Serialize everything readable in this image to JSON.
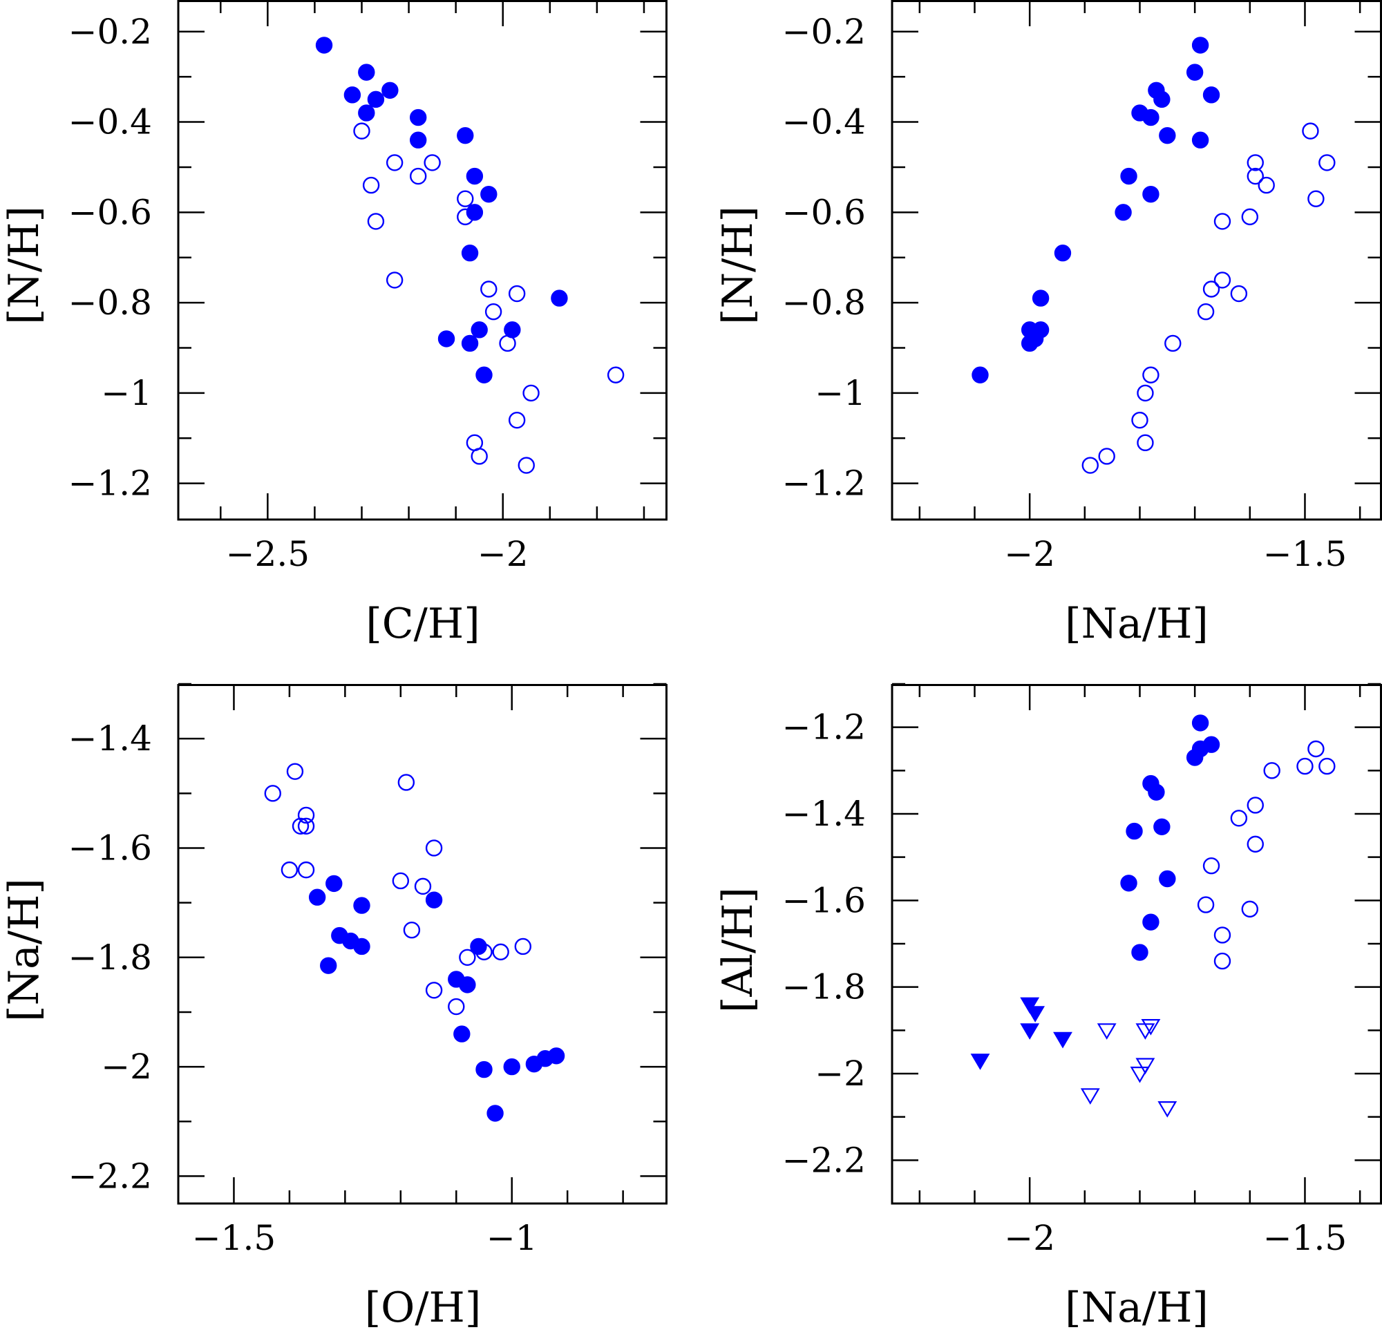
{
  "chart_data": [
    {
      "type": "scatter",
      "xlabel": "[C/H]",
      "ylabel": "[N/H]",
      "xlim": [
        -2.69,
        -1.65
      ],
      "ylim": [
        -1.28,
        -0.13
      ],
      "xticks_major": [
        -2.5,
        -2
      ],
      "xtick_labels": [
        "−2.5",
        "−2"
      ],
      "xticks_minor_step": 0.1,
      "yticks_major": [
        -1.2,
        -1,
        -0.8,
        -0.6,
        -0.4,
        -0.2
      ],
      "ytick_labels": [
        "−1.2",
        "−1",
        "−0.8",
        "−0.6",
        "−0.4",
        "−0.2"
      ],
      "yticks_minor_step": 0.1,
      "series": [
        {
          "name": "filled",
          "marker": "circle",
          "filled": true,
          "points": [
            [
              -2.38,
              -0.23
            ],
            [
              -2.29,
              -0.29
            ],
            [
              -2.32,
              -0.34
            ],
            [
              -2.27,
              -0.35
            ],
            [
              -2.24,
              -0.33
            ],
            [
              -2.29,
              -0.38
            ],
            [
              -2.18,
              -0.39
            ],
            [
              -2.18,
              -0.44
            ],
            [
              -2.08,
              -0.43
            ],
            [
              -2.06,
              -0.52
            ],
            [
              -2.03,
              -0.56
            ],
            [
              -2.06,
              -0.6
            ],
            [
              -2.07,
              -0.69
            ],
            [
              -1.88,
              -0.79
            ],
            [
              -2.05,
              -0.86
            ],
            [
              -1.98,
              -0.86
            ],
            [
              -2.12,
              -0.88
            ],
            [
              -2.07,
              -0.89
            ],
            [
              -2.04,
              -0.96
            ]
          ]
        },
        {
          "name": "open",
          "marker": "circle",
          "filled": false,
          "points": [
            [
              -2.3,
              -0.42
            ],
            [
              -2.23,
              -0.49
            ],
            [
              -2.15,
              -0.49
            ],
            [
              -2.18,
              -0.52
            ],
            [
              -2.28,
              -0.54
            ],
            [
              -2.08,
              -0.57
            ],
            [
              -2.08,
              -0.61
            ],
            [
              -2.27,
              -0.62
            ],
            [
              -2.23,
              -0.75
            ],
            [
              -2.03,
              -0.77
            ],
            [
              -1.97,
              -0.78
            ],
            [
              -2.02,
              -0.82
            ],
            [
              -1.99,
              -0.89
            ],
            [
              -1.76,
              -0.96
            ],
            [
              -1.94,
              -1.0
            ],
            [
              -1.97,
              -1.06
            ],
            [
              -2.06,
              -1.11
            ],
            [
              -2.05,
              -1.14
            ],
            [
              -1.95,
              -1.16
            ]
          ]
        }
      ]
    },
    {
      "type": "scatter",
      "xlabel": "[Na/H]",
      "ylabel": "[N/H]",
      "xlim": [
        -2.25,
        -1.36
      ],
      "ylim": [
        -1.28,
        -0.13
      ],
      "xticks_major": [
        -2,
        -1.5
      ],
      "xtick_labels": [
        "−2",
        "−1.5"
      ],
      "xticks_minor_step": 0.1,
      "yticks_major": [
        -1.2,
        -1,
        -0.8,
        -0.6,
        -0.4,
        -0.2
      ],
      "ytick_labels": [
        "−1.2",
        "−1",
        "−0.8",
        "−0.6",
        "−0.4",
        "−0.2"
      ],
      "yticks_minor_step": 0.1,
      "series": [
        {
          "name": "filled",
          "marker": "circle",
          "filled": true,
          "points": [
            [
              -1.69,
              -0.23
            ],
            [
              -1.7,
              -0.29
            ],
            [
              -1.67,
              -0.34
            ],
            [
              -1.77,
              -0.33
            ],
            [
              -1.76,
              -0.35
            ],
            [
              -1.8,
              -0.38
            ],
            [
              -1.78,
              -0.39
            ],
            [
              -1.75,
              -0.43
            ],
            [
              -1.69,
              -0.44
            ],
            [
              -1.82,
              -0.52
            ],
            [
              -1.78,
              -0.56
            ],
            [
              -1.83,
              -0.6
            ],
            [
              -1.94,
              -0.69
            ],
            [
              -1.98,
              -0.79
            ],
            [
              -2.0,
              -0.86
            ],
            [
              -1.98,
              -0.86
            ],
            [
              -1.99,
              -0.88
            ],
            [
              -2.0,
              -0.89
            ],
            [
              -2.09,
              -0.96
            ]
          ]
        },
        {
          "name": "open",
          "marker": "circle",
          "filled": false,
          "points": [
            [
              -1.49,
              -0.42
            ],
            [
              -1.46,
              -0.49
            ],
            [
              -1.59,
              -0.49
            ],
            [
              -1.59,
              -0.52
            ],
            [
              -1.57,
              -0.54
            ],
            [
              -1.48,
              -0.57
            ],
            [
              -1.6,
              -0.61
            ],
            [
              -1.65,
              -0.62
            ],
            [
              -1.65,
              -0.75
            ],
            [
              -1.67,
              -0.77
            ],
            [
              -1.62,
              -0.78
            ],
            [
              -1.68,
              -0.82
            ],
            [
              -1.74,
              -0.89
            ],
            [
              -1.78,
              -0.96
            ],
            [
              -1.79,
              -1.0
            ],
            [
              -1.8,
              -1.06
            ],
            [
              -1.79,
              -1.11
            ],
            [
              -1.86,
              -1.14
            ],
            [
              -1.89,
              -1.16
            ]
          ]
        }
      ]
    },
    {
      "type": "scatter",
      "xlabel": "[O/H]",
      "ylabel": "[Na/H]",
      "xlim": [
        -1.6,
        -0.72
      ],
      "ylim": [
        -2.25,
        -1.3
      ],
      "xticks_major": [
        -1.5,
        -1
      ],
      "xtick_labels": [
        "−1.5",
        "−1"
      ],
      "xticks_minor_step": 0.1,
      "yticks_major": [
        -2.2,
        -2,
        -1.8,
        -1.6,
        -1.4
      ],
      "ytick_labels": [
        "−2.2",
        "−2",
        "−1.8",
        "−1.6",
        "−1.4"
      ],
      "yticks_minor_step": 0.1,
      "series": [
        {
          "name": "filled",
          "marker": "circle",
          "filled": true,
          "points": [
            [
              -1.35,
              -1.69
            ],
            [
              -1.32,
              -1.665
            ],
            [
              -1.27,
              -1.705
            ],
            [
              -1.14,
              -1.695
            ],
            [
              -1.31,
              -1.76
            ],
            [
              -1.29,
              -1.77
            ],
            [
              -1.27,
              -1.78
            ],
            [
              -1.33,
              -1.815
            ],
            [
              -1.06,
              -1.78
            ],
            [
              -1.1,
              -1.84
            ],
            [
              -1.08,
              -1.85
            ],
            [
              -1.09,
              -1.94
            ],
            [
              -1.05,
              -2.005
            ],
            [
              -1.0,
              -2.0
            ],
            [
              -0.96,
              -1.995
            ],
            [
              -0.94,
              -1.985
            ],
            [
              -0.92,
              -1.98
            ],
            [
              -1.03,
              -2.085
            ]
          ]
        },
        {
          "name": "open",
          "marker": "circle",
          "filled": false,
          "points": [
            [
              -1.43,
              -1.5
            ],
            [
              -1.39,
              -1.46
            ],
            [
              -1.19,
              -1.48
            ],
            [
              -1.37,
              -1.54
            ],
            [
              -1.38,
              -1.56
            ],
            [
              -1.37,
              -1.56
            ],
            [
              -1.14,
              -1.6
            ],
            [
              -1.4,
              -1.64
            ],
            [
              -1.37,
              -1.64
            ],
            [
              -1.2,
              -1.66
            ],
            [
              -1.16,
              -1.67
            ],
            [
              -1.18,
              -1.75
            ],
            [
              -1.08,
              -1.8
            ],
            [
              -1.05,
              -1.79
            ],
            [
              -1.02,
              -1.79
            ],
            [
              -0.98,
              -1.78
            ],
            [
              -1.14,
              -1.86
            ],
            [
              -1.1,
              -1.89
            ]
          ]
        }
      ]
    },
    {
      "type": "scatter",
      "xlabel": "[Na/H]",
      "ylabel": "[Al/H]",
      "xlim": [
        -2.25,
        -1.36
      ],
      "ylim": [
        -2.3,
        -1.1
      ],
      "xticks_major": [
        -2,
        -1.5
      ],
      "xtick_labels": [
        "−2",
        "−1.5"
      ],
      "xticks_minor_step": 0.1,
      "yticks_major": [
        -2.2,
        -2,
        -1.8,
        -1.6,
        -1.4,
        -1.2
      ],
      "ytick_labels": [
        "−2.2",
        "−2",
        "−1.8",
        "−1.6",
        "−1.4",
        "−1.2"
      ],
      "yticks_minor_step": 0.1,
      "series": [
        {
          "name": "filled",
          "marker": "circle",
          "filled": true,
          "points": [
            [
              -1.69,
              -1.19
            ],
            [
              -1.69,
              -1.25
            ],
            [
              -1.67,
              -1.24
            ],
            [
              -1.7,
              -1.27
            ],
            [
              -1.78,
              -1.33
            ],
            [
              -1.77,
              -1.35
            ],
            [
              -1.76,
              -1.43
            ],
            [
              -1.81,
              -1.44
            ],
            [
              -1.75,
              -1.55
            ],
            [
              -1.82,
              -1.56
            ],
            [
              -1.78,
              -1.65
            ],
            [
              -1.8,
              -1.72
            ]
          ]
        },
        {
          "name": "open",
          "marker": "circle",
          "filled": false,
          "points": [
            [
              -1.48,
              -1.25
            ],
            [
              -1.5,
              -1.29
            ],
            [
              -1.46,
              -1.29
            ],
            [
              -1.56,
              -1.3
            ],
            [
              -1.59,
              -1.38
            ],
            [
              -1.62,
              -1.41
            ],
            [
              -1.59,
              -1.47
            ],
            [
              -1.67,
              -1.52
            ],
            [
              -1.68,
              -1.61
            ],
            [
              -1.6,
              -1.62
            ],
            [
              -1.65,
              -1.68
            ],
            [
              -1.65,
              -1.74
            ]
          ]
        },
        {
          "name": "filled-upper-limit",
          "marker": "triangle-down",
          "filled": true,
          "points": [
            [
              -2.0,
              -1.84
            ],
            [
              -1.99,
              -1.86
            ],
            [
              -2.0,
              -1.9
            ],
            [
              -1.94,
              -1.92
            ],
            [
              -2.09,
              -1.97
            ]
          ]
        },
        {
          "name": "open-upper-limit",
          "marker": "triangle-down",
          "filled": false,
          "points": [
            [
              -1.86,
              -1.9
            ],
            [
              -1.78,
              -1.89
            ],
            [
              -1.79,
              -1.9
            ],
            [
              -1.79,
              -1.98
            ],
            [
              -1.8,
              -2.0
            ],
            [
              -1.89,
              -2.05
            ],
            [
              -1.75,
              -2.08
            ]
          ]
        }
      ]
    }
  ],
  "style": {
    "marker_color": "#0000ff",
    "axis_color": "#000000",
    "background": "#ffffff"
  }
}
